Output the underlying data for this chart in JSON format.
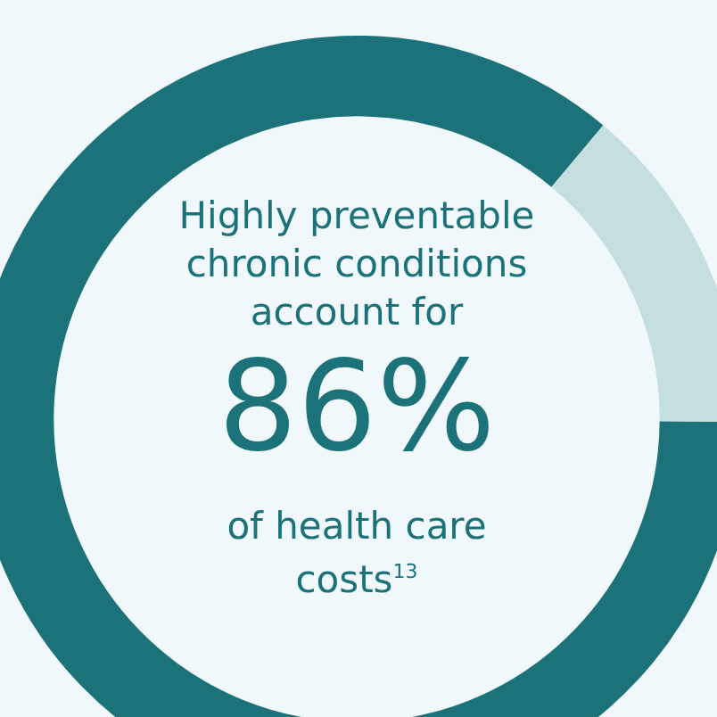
{
  "chart_data": {
    "type": "donut",
    "title": "Highly preventable chronic conditions account for",
    "categories": [
      null,
      null
    ],
    "values": [
      86,
      14
    ],
    "colors": [
      "#1b7279",
      "#c5dedf"
    ],
    "value_labels": [
      "86%",
      null
    ],
    "annotations": [
      "of health care costs$^{13}$"
    ],
    "legend": false
  }
}
